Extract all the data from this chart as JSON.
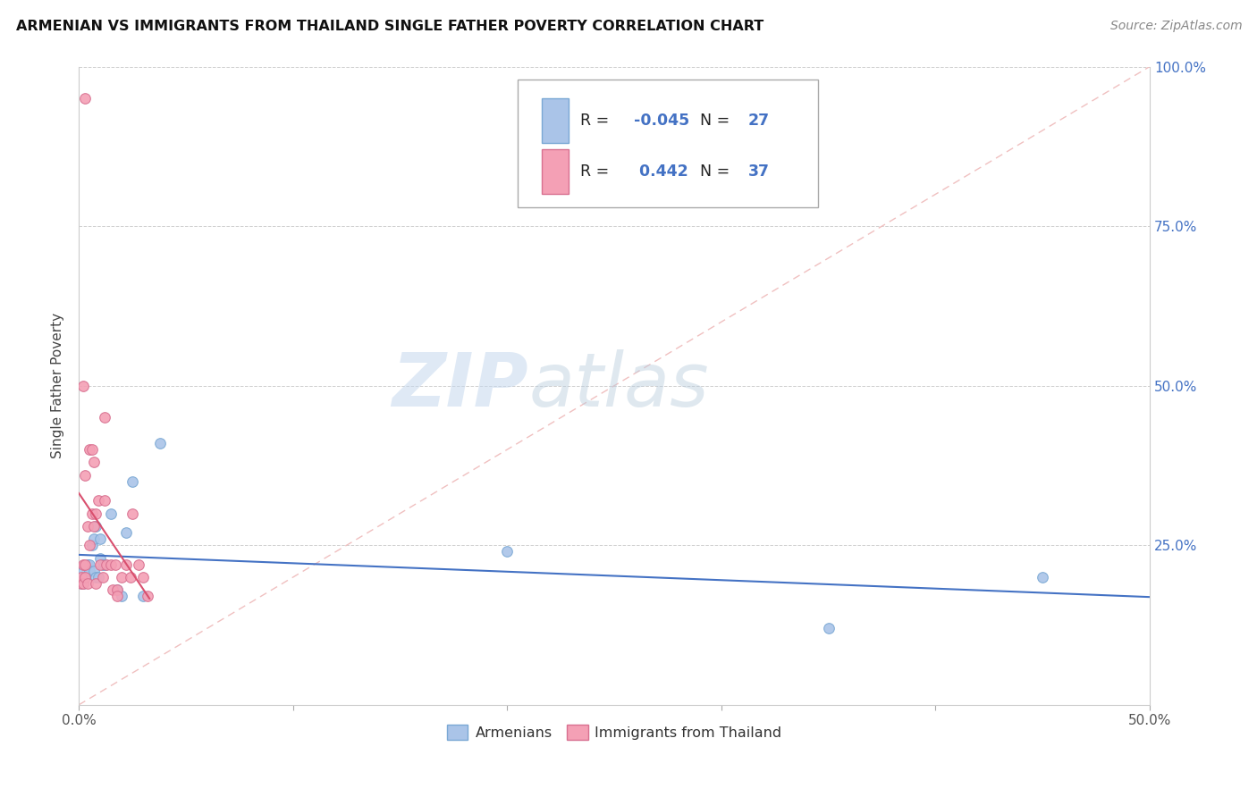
{
  "title": "ARMENIAN VS IMMIGRANTS FROM THAILAND SINGLE FATHER POVERTY CORRELATION CHART",
  "source": "Source: ZipAtlas.com",
  "ylabel": "Single Father Poverty",
  "xlim": [
    0.0,
    0.5
  ],
  "ylim": [
    0.0,
    1.0
  ],
  "xtick_positions": [
    0.0,
    0.1,
    0.2,
    0.3,
    0.4,
    0.5
  ],
  "xticklabels": [
    "0.0%",
    "",
    "",
    "",
    "",
    "50.0%"
  ],
  "ytick_positions": [
    0.0,
    0.25,
    0.5,
    0.75,
    1.0
  ],
  "ytick_labels_right": [
    "",
    "25.0%",
    "50.0%",
    "75.0%",
    "100.0%"
  ],
  "armenian_color": "#aac4e8",
  "thailand_color": "#f4a0b5",
  "regression_armenian_color": "#4472c4",
  "regression_thailand_color": "#d94f6e",
  "diagonal_color": "#f0c0c0",
  "grid_color": "#d0d0d0",
  "armenian_x": [
    0.001,
    0.002,
    0.002,
    0.003,
    0.004,
    0.005,
    0.005,
    0.006,
    0.007,
    0.007,
    0.008,
    0.008,
    0.009,
    0.01,
    0.01,
    0.011,
    0.012,
    0.015,
    0.018,
    0.02,
    0.022,
    0.025,
    0.03,
    0.038,
    0.2,
    0.35,
    0.45
  ],
  "armenian_y": [
    0.19,
    0.21,
    0.19,
    0.2,
    0.22,
    0.22,
    0.21,
    0.25,
    0.26,
    0.21,
    0.28,
    0.2,
    0.2,
    0.26,
    0.23,
    0.22,
    0.22,
    0.3,
    0.18,
    0.17,
    0.27,
    0.35,
    0.17,
    0.41,
    0.24,
    0.12,
    0.2
  ],
  "thailand_x": [
    0.001,
    0.001,
    0.002,
    0.002,
    0.003,
    0.003,
    0.003,
    0.004,
    0.004,
    0.005,
    0.005,
    0.006,
    0.006,
    0.007,
    0.007,
    0.008,
    0.008,
    0.009,
    0.01,
    0.011,
    0.012,
    0.013,
    0.015,
    0.016,
    0.017,
    0.018,
    0.02,
    0.022,
    0.024,
    0.025,
    0.028,
    0.03,
    0.032,
    0.003,
    0.018,
    0.002,
    0.012
  ],
  "thailand_y": [
    0.19,
    0.2,
    0.19,
    0.22,
    0.2,
    0.22,
    0.95,
    0.28,
    0.19,
    0.25,
    0.4,
    0.3,
    0.4,
    0.28,
    0.38,
    0.3,
    0.19,
    0.32,
    0.22,
    0.2,
    0.32,
    0.22,
    0.22,
    0.18,
    0.22,
    0.18,
    0.2,
    0.22,
    0.2,
    0.3,
    0.22,
    0.2,
    0.17,
    0.36,
    0.17,
    0.5,
    0.45
  ],
  "marker_size": 70
}
